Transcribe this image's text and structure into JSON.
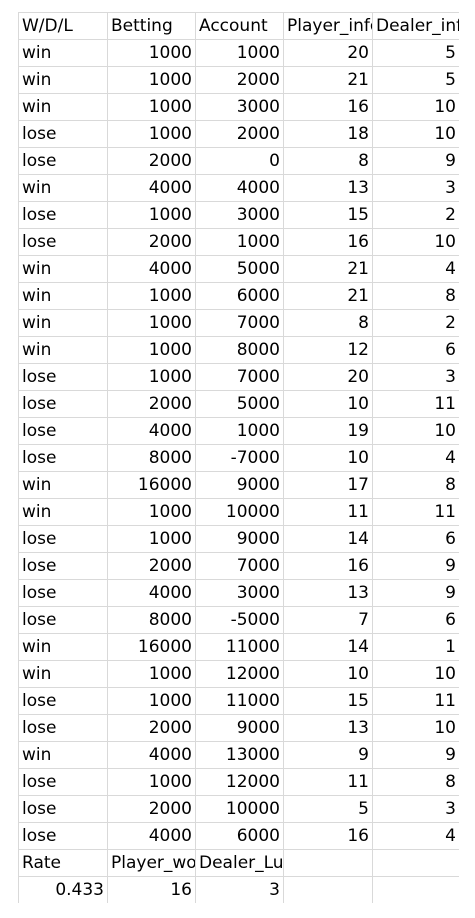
{
  "headers": [
    "W/D/L",
    "Betting",
    "Account",
    "Player_info",
    "Dealer_info"
  ],
  "rows": [
    [
      "win",
      "1000",
      "1000",
      "20",
      "5"
    ],
    [
      "win",
      "1000",
      "2000",
      "21",
      "5"
    ],
    [
      "win",
      "1000",
      "3000",
      "16",
      "10"
    ],
    [
      "lose",
      "1000",
      "2000",
      "18",
      "10"
    ],
    [
      "lose",
      "2000",
      "0",
      "8",
      "9"
    ],
    [
      "win",
      "4000",
      "4000",
      "13",
      "3"
    ],
    [
      "lose",
      "1000",
      "3000",
      "15",
      "2"
    ],
    [
      "lose",
      "2000",
      "1000",
      "16",
      "10"
    ],
    [
      "win",
      "4000",
      "5000",
      "21",
      "4"
    ],
    [
      "win",
      "1000",
      "6000",
      "21",
      "8"
    ],
    [
      "win",
      "1000",
      "7000",
      "8",
      "2"
    ],
    [
      "win",
      "1000",
      "8000",
      "12",
      "6"
    ],
    [
      "lose",
      "1000",
      "7000",
      "20",
      "3"
    ],
    [
      "lose",
      "2000",
      "5000",
      "10",
      "11"
    ],
    [
      "lose",
      "4000",
      "1000",
      "19",
      "10"
    ],
    [
      "lose",
      "8000",
      "-7000",
      "10",
      "4"
    ],
    [
      "win",
      "16000",
      "9000",
      "17",
      "8"
    ],
    [
      "win",
      "1000",
      "10000",
      "11",
      "11"
    ],
    [
      "lose",
      "1000",
      "9000",
      "14",
      "6"
    ],
    [
      "lose",
      "2000",
      "7000",
      "16",
      "9"
    ],
    [
      "lose",
      "4000",
      "3000",
      "13",
      "9"
    ],
    [
      "lose",
      "8000",
      "-5000",
      "7",
      "6"
    ],
    [
      "win",
      "16000",
      "11000",
      "14",
      "1"
    ],
    [
      "win",
      "1000",
      "12000",
      "10",
      "10"
    ],
    [
      "lose",
      "1000",
      "11000",
      "15",
      "11"
    ],
    [
      "lose",
      "2000",
      "9000",
      "13",
      "10"
    ],
    [
      "win",
      "4000",
      "13000",
      "9",
      "9"
    ],
    [
      "lose",
      "1000",
      "12000",
      "11",
      "8"
    ],
    [
      "lose",
      "2000",
      "10000",
      "5",
      "3"
    ],
    [
      "lose",
      "4000",
      "6000",
      "16",
      "4"
    ]
  ],
  "summary_headers": [
    "Rate",
    "Player_worst",
    "Dealer_Lucky",
    "",
    ""
  ],
  "summary_values": [
    "0.433",
    "16",
    "3",
    "",
    ""
  ]
}
